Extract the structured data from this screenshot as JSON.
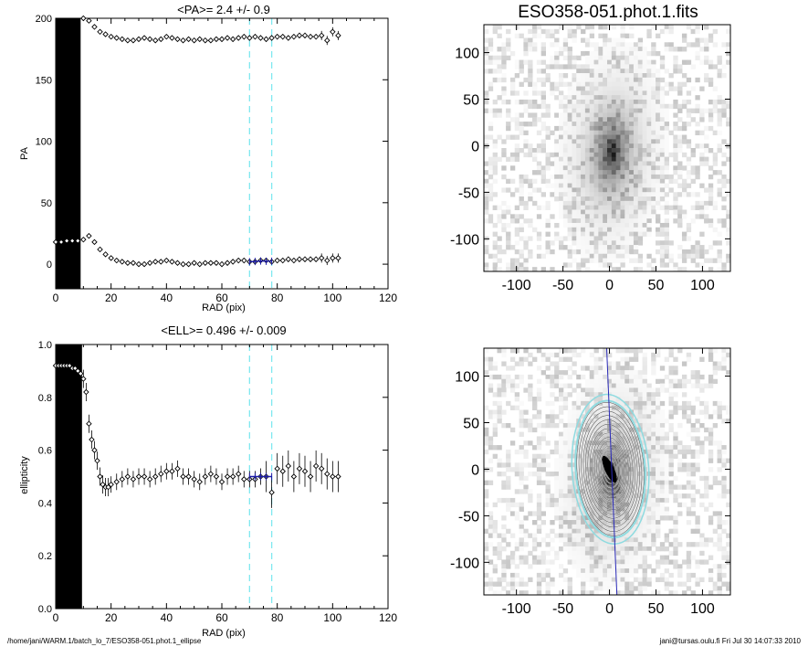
{
  "chart_data": [
    {
      "type": "scatter",
      "panel": "pa-profile",
      "title": "<PA>=   2.4 +/-   0.9",
      "xlabel": "RAD (pix)",
      "ylabel": "PA",
      "xlim": [
        0,
        120
      ],
      "ylim": [
        -20,
        200
      ],
      "xticks": [
        "0",
        "20",
        "40",
        "60",
        "80",
        "100",
        "120"
      ],
      "yticks": [
        "0",
        "50",
        "100",
        "150",
        "200"
      ],
      "vlines": [
        70,
        78
      ],
      "series": [
        {
          "x": [
            10,
            12,
            14,
            16,
            18,
            20,
            22,
            24,
            26,
            28,
            30,
            32,
            34,
            36,
            38,
            40,
            42,
            44,
            46,
            48,
            50,
            52,
            54,
            56,
            58,
            60,
            62,
            64,
            66,
            68,
            70,
            72,
            74,
            76,
            78,
            80,
            82,
            84,
            86,
            88,
            90,
            92,
            94,
            96,
            98,
            100,
            102
          ],
          "values": [
            200,
            198,
            193,
            189,
            187,
            185,
            184,
            183,
            182,
            182,
            183,
            184,
            183,
            182,
            183,
            185,
            184,
            183,
            182,
            183,
            182,
            183,
            182,
            182,
            183,
            183,
            184,
            183,
            184,
            185,
            184,
            185,
            184,
            183,
            184,
            185,
            185,
            184,
            185,
            186,
            186,
            185,
            185,
            186,
            182,
            189,
            186
          ]
        },
        {
          "x": [
            0,
            2,
            4,
            6,
            8,
            10,
            12,
            14,
            16,
            18,
            20,
            22,
            24,
            26,
            28,
            30,
            32,
            34,
            36,
            38,
            40,
            42,
            44,
            46,
            48,
            50,
            52,
            54,
            56,
            58,
            60,
            62,
            64,
            66,
            68,
            70,
            72,
            74,
            76,
            78,
            80,
            82,
            84,
            86,
            88,
            90,
            92,
            94,
            96,
            98,
            100,
            102
          ],
          "values": [
            18,
            18,
            19,
            19,
            19,
            20,
            23,
            18,
            12,
            8,
            5,
            3,
            2,
            1,
            1,
            0,
            0,
            1,
            2,
            2,
            3,
            2,
            1,
            0,
            0,
            1,
            0,
            1,
            1,
            1,
            0,
            1,
            2,
            3,
            3,
            2,
            2,
            3,
            3,
            2,
            3,
            3,
            4,
            3,
            4,
            4,
            4,
            4,
            5,
            3,
            5,
            5
          ]
        },
        {
          "name": "fit",
          "x": [
            70,
            72,
            74,
            76,
            78
          ],
          "values": [
            2,
            2.2,
            2.6,
            2.4,
            2.4
          ]
        }
      ]
    },
    {
      "type": "scatter",
      "panel": "ell-profile",
      "title": "<ELL>= 0.496 +/-  0.009",
      "xlabel": "RAD (pix)",
      "ylabel": "ellipticity",
      "xlim": [
        0,
        120
      ],
      "ylim": [
        0,
        1
      ],
      "xticks": [
        "0",
        "20",
        "40",
        "60",
        "80",
        "100",
        "120"
      ],
      "yticks": [
        "0.0",
        "0.2",
        "0.4",
        "0.6",
        "0.8",
        "1.0"
      ],
      "vlines": [
        70,
        78
      ],
      "series": [
        {
          "x": [
            0,
            1,
            2,
            3,
            4,
            5,
            6,
            7,
            8,
            9,
            10,
            11,
            12,
            13,
            14,
            15,
            16,
            17,
            18,
            19,
            20,
            22,
            24,
            26,
            28,
            30,
            32,
            34,
            36,
            38,
            40,
            42,
            44,
            46,
            48,
            50,
            52,
            54,
            56,
            58,
            60,
            62,
            64,
            66,
            68,
            70,
            72,
            74,
            76,
            78,
            80,
            82,
            84,
            86,
            88,
            90,
            92,
            94,
            96,
            98,
            100,
            102
          ],
          "values": [
            0.92,
            0.92,
            0.92,
            0.92,
            0.92,
            0.92,
            0.91,
            0.91,
            0.9,
            0.89,
            0.87,
            0.82,
            0.7,
            0.64,
            0.6,
            0.56,
            0.5,
            0.47,
            0.46,
            0.46,
            0.47,
            0.48,
            0.49,
            0.5,
            0.49,
            0.5,
            0.5,
            0.49,
            0.5,
            0.51,
            0.52,
            0.52,
            0.53,
            0.5,
            0.5,
            0.49,
            0.48,
            0.5,
            0.51,
            0.5,
            0.48,
            0.5,
            0.5,
            0.51,
            0.49,
            0.49,
            0.49,
            0.5,
            0.5,
            0.44,
            0.53,
            0.52,
            0.54,
            0.5,
            0.53,
            0.52,
            0.5,
            0.54,
            0.53,
            0.51,
            0.5,
            0.5
          ]
        },
        {
          "name": "fit",
          "x": [
            70,
            72,
            74,
            76,
            78
          ],
          "values": [
            0.5,
            0.5,
            0.5,
            0.5,
            0.5
          ]
        }
      ]
    },
    {
      "type": "heatmap",
      "panel": "image",
      "title": "ESO358-051.phot.1.fits",
      "xlim": [
        -135,
        130
      ],
      "ylim": [
        -135,
        130
      ],
      "xticks": [
        "-100",
        "-50",
        "0",
        "50",
        "100"
      ],
      "yticks": [
        "100",
        "50",
        "0",
        "-50",
        "-100"
      ]
    },
    {
      "type": "heatmap",
      "panel": "contours",
      "xlim": [
        -135,
        130
      ],
      "ylim": [
        -135,
        130
      ],
      "xticks": [
        "-100",
        "-50",
        "0",
        "50",
        "100"
      ],
      "yticks": [
        "100",
        "50",
        "0",
        "-50",
        "-100"
      ]
    }
  ],
  "footer": {
    "path": "/home/jani/WARM.1/batch_lo_7/ESO358-051.phot.1_ellipse",
    "stamp": "jani@tursas.oulu.fi  Fri Jul 30 14:07:33 2010"
  }
}
